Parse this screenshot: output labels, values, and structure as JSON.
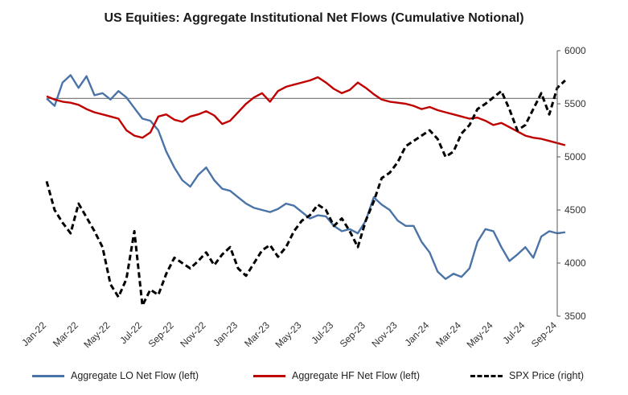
{
  "chart_data": {
    "type": "line",
    "title": "US Equities: Aggregate Institutional Net Flows (Cumulative Notional)",
    "x_labels": [
      "Jan-22",
      "Mar-22",
      "May-22",
      "Jul-22",
      "Sep-22",
      "Nov-22",
      "Jan-23",
      "Mar-23",
      "May-23",
      "Jul-23",
      "Sep-23",
      "Nov-23",
      "Jan-24",
      "Mar-24",
      "May-24",
      "Jul-24",
      "Sep-24"
    ],
    "y_right_ticks": [
      3500,
      4000,
      4500,
      5000,
      5500,
      6000
    ],
    "y_right_range": [
      3500,
      6000
    ],
    "reference_line": 5550,
    "grid": false,
    "legend_position": "bottom",
    "series": [
      {
        "name": "Aggregate LO Net Flow (left)",
        "color": "#4a73a8",
        "style": "solid",
        "axis": "left",
        "x": [
          0,
          0.5,
          1,
          1.5,
          2,
          2.5,
          3,
          3.5,
          4,
          4.5,
          5,
          5.5,
          6,
          6.5,
          7,
          7.5,
          8,
          8.5,
          9,
          9.5,
          10,
          10.5,
          11,
          11.5,
          12,
          12.5,
          13,
          13.5,
          14,
          14.5,
          15,
          15.5,
          16,
          16.5,
          17,
          17.5,
          18,
          18.5,
          19,
          19.5,
          20,
          20.5,
          21,
          21.5,
          22,
          22.5,
          23,
          23.5,
          24,
          24.5,
          25,
          25.5,
          26,
          26.5,
          27,
          27.5,
          28,
          28.5,
          29,
          29.5,
          30,
          30.5,
          31,
          31.5,
          32,
          32.5
        ],
        "values": [
          5550,
          5480,
          5700,
          5770,
          5650,
          5760,
          5580,
          5600,
          5540,
          5620,
          5560,
          5460,
          5360,
          5340,
          5250,
          5050,
          4900,
          4780,
          4720,
          4830,
          4900,
          4780,
          4700,
          4680,
          4620,
          4560,
          4520,
          4500,
          4480,
          4510,
          4560,
          4540,
          4480,
          4420,
          4450,
          4440,
          4350,
          4300,
          4320,
          4280,
          4400,
          4620,
          4550,
          4500,
          4400,
          4350,
          4350,
          4200,
          4100,
          3920,
          3850,
          3900,
          3870,
          3950,
          4200,
          4320,
          4300,
          4150,
          4020,
          4080,
          4150,
          4050,
          4250,
          4300,
          4280,
          4290
        ]
      },
      {
        "name": "Aggregate HF Net Flow (left)",
        "color": "#c00000",
        "style": "solid",
        "axis": "left",
        "x": [
          0,
          0.5,
          1,
          1.5,
          2,
          2.5,
          3,
          3.5,
          4,
          4.5,
          5,
          5.5,
          6,
          6.5,
          7,
          7.5,
          8,
          8.5,
          9,
          9.5,
          10,
          10.5,
          11,
          11.5,
          12,
          12.5,
          13,
          13.5,
          14,
          14.5,
          15,
          15.5,
          16,
          16.5,
          17,
          17.5,
          18,
          18.5,
          19,
          19.5,
          20,
          20.5,
          21,
          21.5,
          22,
          22.5,
          23,
          23.5,
          24,
          24.5,
          25,
          25.5,
          26,
          26.5,
          27,
          27.5,
          28,
          28.5,
          29,
          29.5,
          30,
          30.5,
          31,
          31.5,
          32,
          32.5
        ],
        "values": [
          5570,
          5540,
          5520,
          5510,
          5490,
          5450,
          5420,
          5400,
          5380,
          5360,
          5250,
          5200,
          5180,
          5230,
          5380,
          5400,
          5350,
          5330,
          5380,
          5400,
          5430,
          5390,
          5310,
          5340,
          5420,
          5500,
          5560,
          5600,
          5520,
          5620,
          5660,
          5680,
          5700,
          5720,
          5750,
          5700,
          5640,
          5600,
          5630,
          5700,
          5650,
          5590,
          5540,
          5520,
          5510,
          5500,
          5480,
          5450,
          5470,
          5440,
          5420,
          5400,
          5380,
          5360,
          5370,
          5340,
          5300,
          5320,
          5280,
          5240,
          5200,
          5180,
          5170,
          5150,
          5130,
          5110
        ]
      },
      {
        "name": "SPX Price (right)",
        "color": "#000000",
        "style": "dashed",
        "axis": "right",
        "x": [
          0,
          0.5,
          1,
          1.5,
          2,
          2.5,
          3,
          3.5,
          4,
          4.5,
          5,
          5.5,
          6,
          6.5,
          7,
          7.5,
          8,
          8.5,
          9,
          9.5,
          10,
          10.5,
          11,
          11.5,
          12,
          12.5,
          13,
          13.5,
          14,
          14.5,
          15,
          15.5,
          16,
          16.5,
          17,
          17.5,
          18,
          18.5,
          19,
          19.5,
          20,
          20.5,
          21,
          21.5,
          22,
          22.5,
          23,
          23.5,
          24,
          24.5,
          25,
          25.5,
          26,
          26.5,
          27,
          27.5,
          28,
          28.5,
          29,
          29.5,
          30,
          30.5,
          31,
          31.5,
          32,
          32.5
        ],
        "values": [
          4770,
          4500,
          4380,
          4280,
          4560,
          4430,
          4300,
          4150,
          3800,
          3680,
          3850,
          4300,
          3600,
          3750,
          3700,
          3900,
          4050,
          4000,
          3950,
          4020,
          4100,
          3980,
          4080,
          4150,
          3950,
          3880,
          4000,
          4120,
          4170,
          4060,
          4150,
          4300,
          4400,
          4450,
          4550,
          4500,
          4350,
          4420,
          4300,
          4150,
          4400,
          4580,
          4800,
          4850,
          4950,
          5100,
          5150,
          5200,
          5250,
          5170,
          5000,
          5050,
          5220,
          5300,
          5450,
          5500,
          5560,
          5620,
          5450,
          5250,
          5300,
          5450,
          5600,
          5400,
          5650,
          5720
        ]
      }
    ]
  }
}
